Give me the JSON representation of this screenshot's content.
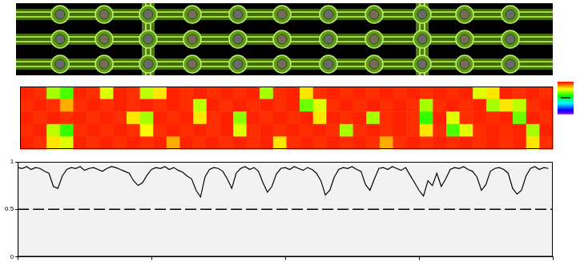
{
  "chart_data": [
    {
      "type": "heatmap",
      "cells": [
        [
          0.97,
          0.96,
          0.7,
          0.62,
          0.97,
          0.96,
          0.75,
          0.97,
          0.96,
          0.72,
          0.8,
          0.97,
          0.96,
          0.97,
          0.96,
          0.97,
          0.96,
          0.97,
          0.7,
          0.96,
          0.97,
          0.8,
          0.96,
          0.97,
          0.96,
          0.97,
          0.96,
          0.97,
          0.96,
          0.97,
          0.96,
          0.97,
          0.96,
          0.97,
          0.75,
          0.8,
          0.97,
          0.96,
          0.97,
          0.96
        ],
        [
          0.96,
          0.97,
          0.96,
          0.85,
          0.96,
          0.97,
          0.96,
          0.97,
          0.96,
          0.97,
          0.96,
          0.97,
          0.96,
          0.72,
          0.97,
          0.96,
          0.97,
          0.96,
          0.97,
          0.96,
          0.97,
          0.65,
          0.75,
          0.96,
          0.97,
          0.96,
          0.97,
          0.96,
          0.97,
          0.96,
          0.7,
          0.96,
          0.97,
          0.96,
          0.97,
          0.7,
          0.8,
          0.72,
          0.96,
          0.97
        ],
        [
          0.97,
          0.96,
          0.97,
          0.96,
          0.97,
          0.96,
          0.97,
          0.96,
          0.8,
          0.7,
          0.97,
          0.96,
          0.97,
          0.8,
          0.96,
          0.97,
          0.68,
          0.97,
          0.96,
          0.97,
          0.96,
          0.97,
          0.8,
          0.97,
          0.96,
          0.97,
          0.7,
          0.96,
          0.97,
          0.96,
          0.6,
          0.97,
          0.75,
          0.96,
          0.97,
          0.96,
          0.97,
          0.65,
          0.97,
          0.96
        ],
        [
          0.96,
          0.97,
          0.72,
          0.6,
          0.96,
          0.97,
          0.96,
          0.97,
          0.96,
          0.78,
          0.96,
          0.97,
          0.96,
          0.97,
          0.96,
          0.97,
          0.75,
          0.96,
          0.97,
          0.96,
          0.97,
          0.96,
          0.97,
          0.96,
          0.7,
          0.96,
          0.97,
          0.96,
          0.97,
          0.96,
          0.8,
          0.96,
          0.62,
          0.75,
          0.96,
          0.97,
          0.96,
          0.97,
          0.7,
          0.97
        ],
        [
          0.97,
          0.96,
          0.8,
          0.75,
          0.97,
          0.96,
          0.97,
          0.96,
          0.97,
          0.96,
          0.97,
          0.85,
          0.97,
          0.96,
          0.97,
          0.96,
          0.97,
          0.96,
          0.97,
          0.8,
          0.96,
          0.97,
          0.96,
          0.97,
          0.96,
          0.97,
          0.96,
          0.85,
          0.96,
          0.97,
          0.96,
          0.97,
          0.96,
          0.97,
          0.96,
          0.97,
          0.96,
          0.97,
          0.8,
          0.96
        ]
      ],
      "colorbar_range": [
        0,
        1
      ],
      "colorbar_ticks": [
        0.5
      ],
      "tick_labels": false
    },
    {
      "type": "line",
      "x": [
        0,
        1,
        2,
        3,
        4,
        5,
        6,
        7,
        8,
        9,
        10,
        11,
        12,
        13,
        14,
        15,
        16,
        17,
        18,
        19,
        20,
        21,
        22,
        23,
        24,
        25,
        26,
        27,
        28,
        29,
        30,
        31,
        32,
        33,
        34,
        35,
        36,
        37,
        38,
        39,
        40,
        41,
        42,
        43,
        44,
        45,
        46,
        47,
        48,
        49,
        50,
        51,
        52,
        53,
        54,
        55,
        56,
        57,
        58,
        59,
        60,
        61,
        62,
        63,
        64,
        65,
        66,
        67,
        68,
        69,
        70,
        71,
        72,
        73,
        74,
        75,
        76,
        77,
        78,
        79,
        80,
        81,
        82,
        83,
        84,
        85,
        86,
        87,
        88,
        89,
        90,
        91,
        92,
        93,
        94,
        95,
        96,
        97,
        98,
        99,
        100,
        101,
        102,
        103,
        104,
        105,
        106,
        107,
        108,
        109,
        110,
        111,
        112,
        113,
        114,
        115,
        116,
        117,
        118,
        119
      ],
      "values": [
        0.94,
        0.93,
        0.95,
        0.92,
        0.94,
        0.93,
        0.9,
        0.88,
        0.74,
        0.72,
        0.85,
        0.92,
        0.94,
        0.93,
        0.95,
        0.91,
        0.93,
        0.94,
        0.92,
        0.9,
        0.93,
        0.95,
        0.94,
        0.92,
        0.9,
        0.88,
        0.8,
        0.75,
        0.78,
        0.86,
        0.92,
        0.94,
        0.93,
        0.95,
        0.92,
        0.94,
        0.91,
        0.89,
        0.85,
        0.82,
        0.7,
        0.63,
        0.84,
        0.92,
        0.94,
        0.93,
        0.9,
        0.82,
        0.72,
        0.88,
        0.93,
        0.95,
        0.92,
        0.94,
        0.9,
        0.78,
        0.68,
        0.74,
        0.87,
        0.93,
        0.94,
        0.92,
        0.95,
        0.93,
        0.91,
        0.94,
        0.92,
        0.88,
        0.8,
        0.65,
        0.7,
        0.84,
        0.92,
        0.94,
        0.93,
        0.95,
        0.92,
        0.9,
        0.76,
        0.7,
        0.82,
        0.93,
        0.94,
        0.92,
        0.95,
        0.93,
        0.91,
        0.94,
        0.86,
        0.78,
        0.7,
        0.64,
        0.8,
        0.75,
        0.88,
        0.74,
        0.82,
        0.92,
        0.94,
        0.93,
        0.95,
        0.92,
        0.9,
        0.84,
        0.7,
        0.76,
        0.9,
        0.93,
        0.94,
        0.92,
        0.88,
        0.72,
        0.66,
        0.7,
        0.85,
        0.93,
        0.95,
        0.92,
        0.94,
        0.93
      ],
      "xlim": [
        0,
        120
      ],
      "xticks": [
        0,
        30,
        60,
        90,
        120
      ],
      "ylim": [
        0,
        1
      ],
      "yticks": [
        0,
        0.5,
        1
      ],
      "threshold": 0.5,
      "color": "#000000",
      "line_style": "solid",
      "grid": false,
      "tick_labels": "y"
    }
  ]
}
